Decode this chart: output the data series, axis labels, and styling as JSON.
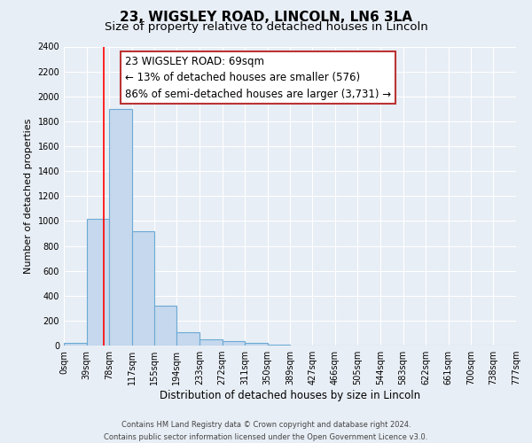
{
  "title_line1": "23, WIGSLEY ROAD, LINCOLN, LN6 3LA",
  "title_line2": "Size of property relative to detached houses in Lincoln",
  "xlabel": "Distribution of detached houses by size in Lincoln",
  "ylabel": "Number of detached properties",
  "bin_edges": [
    0,
    39,
    78,
    117,
    155,
    194,
    233,
    272,
    311,
    350,
    389,
    427,
    466,
    505,
    544,
    583,
    622,
    661,
    700,
    738,
    777
  ],
  "bin_counts": [
    20,
    1020,
    1900,
    920,
    320,
    110,
    50,
    35,
    20,
    5,
    0,
    0,
    0,
    0,
    0,
    0,
    0,
    0,
    0,
    0
  ],
  "tick_labels": [
    "0sqm",
    "39sqm",
    "78sqm",
    "117sqm",
    "155sqm",
    "194sqm",
    "233sqm",
    "272sqm",
    "311sqm",
    "350sqm",
    "389sqm",
    "427sqm",
    "466sqm",
    "505sqm",
    "544sqm",
    "583sqm",
    "622sqm",
    "661sqm",
    "700sqm",
    "738sqm",
    "777sqm"
  ],
  "bar_color": "#c5d8ed",
  "bar_edge_color": "#6aaad4",
  "red_line_x": 69,
  "annotation_line1": "23 WIGSLEY ROAD: 69sqm",
  "annotation_line2": "← 13% of detached houses are smaller (576)",
  "annotation_line3": "86% of semi-detached houses are larger (3,731) →",
  "ylim": [
    0,
    2400
  ],
  "yticks": [
    0,
    200,
    400,
    600,
    800,
    1000,
    1200,
    1400,
    1600,
    1800,
    2000,
    2200,
    2400
  ],
  "background_color": "#e8eef5",
  "grid_color": "#ffffff",
  "footer_line1": "Contains HM Land Registry data © Crown copyright and database right 2024.",
  "footer_line2": "Contains public sector information licensed under the Open Government Licence v3.0.",
  "title_fontsize": 11,
  "subtitle_fontsize": 9.5,
  "annotation_fontsize": 8.5,
  "ylabel_fontsize": 8,
  "xlabel_fontsize": 8.5,
  "tick_fontsize": 7,
  "footer_fontsize": 6
}
